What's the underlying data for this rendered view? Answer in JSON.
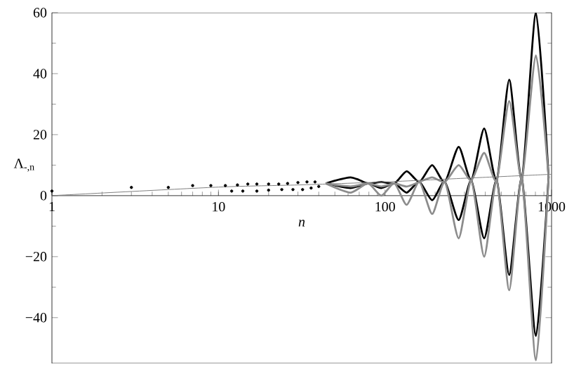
{
  "chart_data": {
    "type": "line",
    "xlabel": "n",
    "ylabel": "Λ$_{-,n}$",
    "log": "x",
    "xlim": [
      1,
      1000
    ],
    "xticks": [
      1,
      10,
      100,
      1000
    ],
    "ylim": [
      -55,
      60
    ],
    "yticks": [
      {
        "value": -40,
        "label": "−40"
      },
      {
        "value": -20,
        "label": "−20"
      },
      0,
      20,
      40,
      60
    ],
    "x": [
      44,
      62,
      79,
      95,
      114,
      135,
      161,
      192,
      229,
      277,
      330,
      394,
      469,
      557,
      664,
      806,
      960
    ],
    "series": [
      {
        "color": "#000000",
        "values": [
          4,
          6,
          4,
          4.5,
          4,
          8,
          4.5,
          10,
          4.5,
          16,
          5,
          22,
          5,
          38,
          5.5,
          60,
          6
        ]
      },
      {
        "color": "#000000",
        "values": [
          4,
          2.5,
          4,
          2.5,
          4,
          1,
          4.5,
          -1.5,
          4.5,
          -8,
          5,
          -14,
          5,
          -26,
          5.5,
          -46,
          6
        ]
      },
      {
        "color": "#8c8c8c",
        "values": [
          4,
          3,
          4,
          3,
          4,
          3,
          4.5,
          6,
          4.5,
          10,
          5,
          14,
          5,
          31,
          5.5,
          46,
          6
        ]
      },
      {
        "color": "#8c8c8c",
        "values": [
          4,
          1,
          4,
          0,
          4,
          -3,
          4.5,
          -6,
          4.5,
          -14,
          5,
          -20,
          5,
          -31,
          5.5,
          -54,
          6
        ]
      },
      {
        "color": "#808080",
        "x": [
          1,
          10,
          30,
          100,
          300,
          1000
        ],
        "values": [
          0,
          2.8,
          3.5,
          4.5,
          5.7,
          7
        ]
      },
      {
        "type": "scatter",
        "color": "#000000",
        "x": [
          1,
          3,
          5,
          7,
          9,
          11,
          13,
          15,
          17,
          20,
          23,
          26,
          30,
          34,
          38,
          12,
          14,
          17,
          20,
          24,
          28,
          32,
          36,
          40
        ],
        "values": [
          1.5,
          2.7,
          2.7,
          3.3,
          3.3,
          3.3,
          3.5,
          3.8,
          3.8,
          3.8,
          3.8,
          4,
          4.3,
          4.5,
          4.5,
          1.5,
          1.5,
          1.5,
          1.8,
          2,
          2,
          2,
          2.5,
          3
        ]
      }
    ]
  }
}
